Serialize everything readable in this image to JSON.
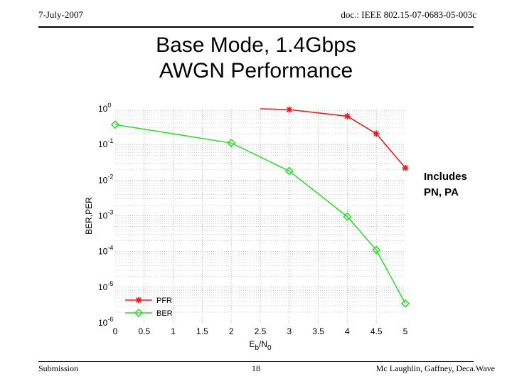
{
  "header": {
    "date": "7-July-2007",
    "doc_id": "doc.: IEEE 802.15-07-0683-05-003c"
  },
  "slide_title": {
    "line1": "Base Mode, 1.4Gbps",
    "line2": "AWGN Performance"
  },
  "annotation": {
    "line1": "Includes",
    "line2": "PN, PA"
  },
  "footer": {
    "left": "Submission",
    "page": "18",
    "right": "Mc Laughlin, Gaffney,  Deca.Wave"
  },
  "chart_data": {
    "type": "line",
    "title": "",
    "xlabel": "Eb/N0",
    "xlabel_main": "E",
    "xlabel_sub1": "b",
    "xlabel_slash": "/N",
    "xlabel_sub2": "0",
    "ylabel": "BER,PER",
    "xlim": [
      0,
      5
    ],
    "ylim_log10": [
      -6,
      0
    ],
    "y_scale": "log",
    "x_ticks": [
      "0",
      "0.5",
      "1",
      "1.5",
      "2",
      "2.5",
      "3",
      "3.5",
      "4",
      "4.5",
      "5"
    ],
    "y_ticks": [
      {
        "base": "10",
        "exp": "0"
      },
      {
        "base": "10",
        "exp": "-1"
      },
      {
        "base": "10",
        "exp": "-2"
      },
      {
        "base": "10",
        "exp": "-3"
      },
      {
        "base": "10",
        "exp": "-4"
      },
      {
        "base": "10",
        "exp": "-5"
      },
      {
        "base": "10",
        "exp": "-6"
      }
    ],
    "grid": true,
    "legend_position": "bottom-left",
    "series": [
      {
        "name": "PFR",
        "color": "#e02020",
        "marker": "asterisk",
        "x": [
          2.5,
          3,
          4,
          4.5,
          5
        ],
        "y": [
          1.0,
          0.95,
          0.62,
          0.2,
          0.022
        ]
      },
      {
        "name": "BER",
        "color": "#30dd30",
        "marker": "diamond",
        "x": [
          0,
          2,
          3,
          4,
          4.5,
          5
        ],
        "y": [
          0.36,
          0.11,
          0.018,
          0.00095,
          0.00011,
          3.5e-06
        ]
      }
    ]
  }
}
